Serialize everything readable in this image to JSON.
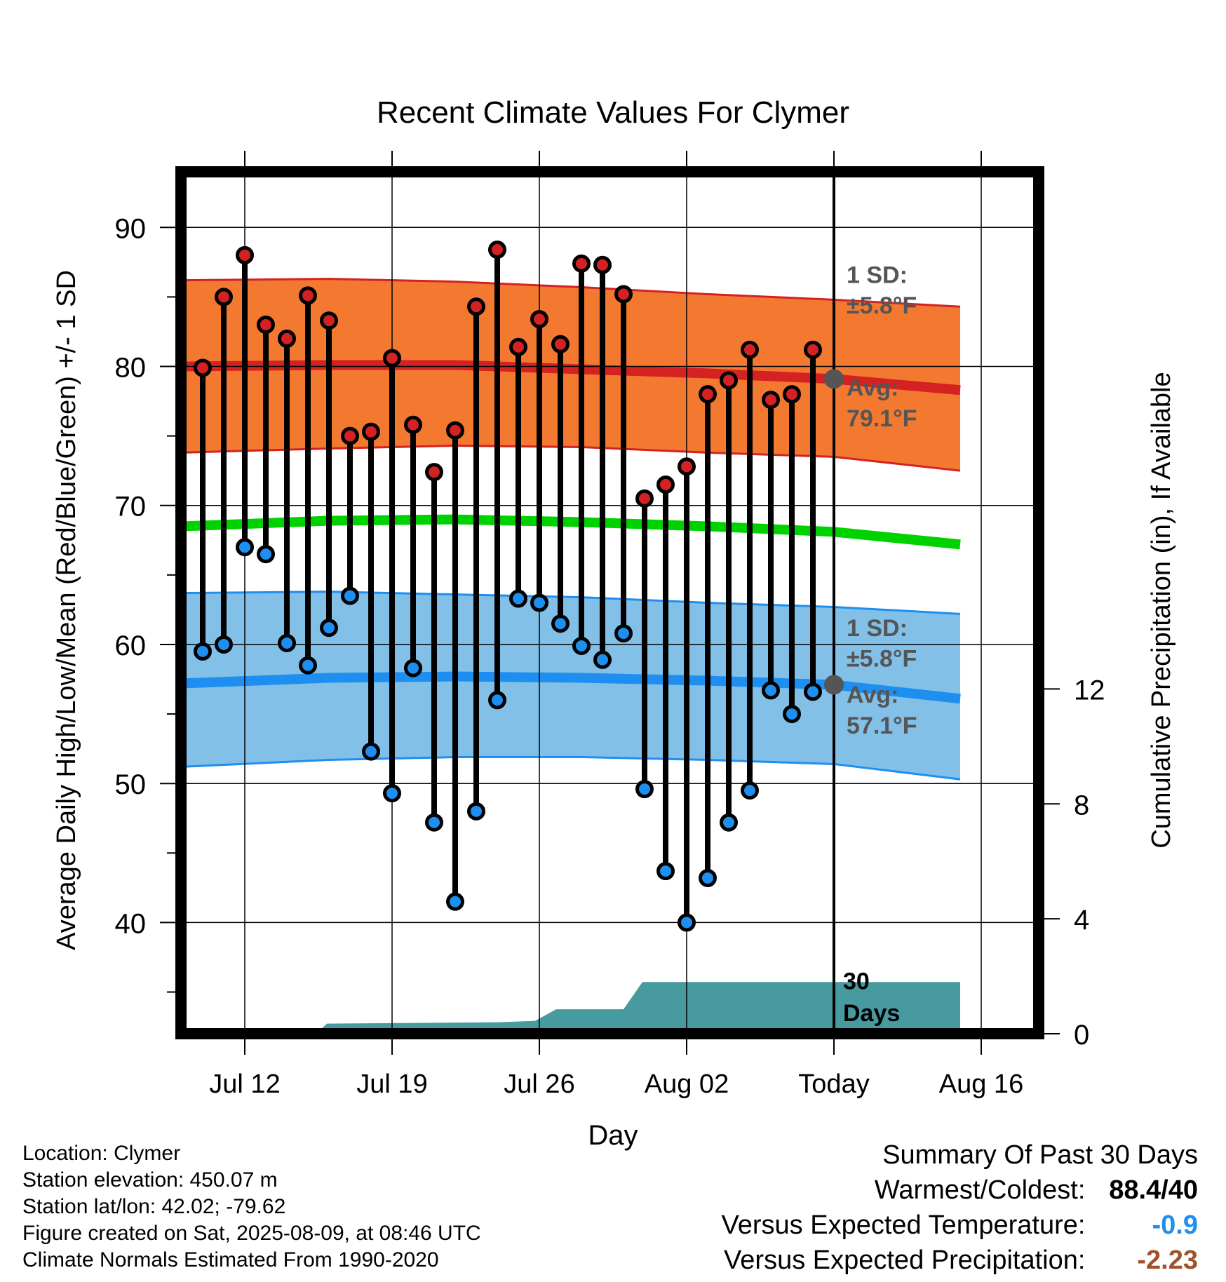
{
  "chart_data": {
    "type": "line",
    "title": "Recent Climate Values For Clymer",
    "xlabel": "Day",
    "ylabel": "Average Daily High/Low/Mean (Red/Blue/Green) +/- 1 SD",
    "y2label": "Cumulative Precipitation (in), If Available",
    "ylim": [
      32,
      94
    ],
    "y2lim": [
      0,
      30
    ],
    "yticks": [
      40,
      50,
      60,
      70,
      80,
      90
    ],
    "y2ticks": [
      0,
      4,
      8,
      12
    ],
    "grid": true,
    "x_tick_labels": [
      "Jul 12",
      "Jul 19",
      "Jul 26",
      "Aug 02",
      "Today",
      "Aug 16"
    ],
    "x_tick_days": [
      0,
      7,
      14,
      21,
      28,
      35
    ],
    "observed": {
      "day_offset_from_jul12": [
        -2,
        -1,
        0,
        1,
        2,
        3,
        4,
        5,
        6,
        7,
        8,
        9,
        10,
        11,
        12,
        13,
        14,
        15,
        16,
        17,
        18,
        19,
        20,
        21,
        22,
        23,
        24,
        25,
        26,
        27,
        28
      ],
      "high": [
        79.9,
        85.0,
        88.0,
        83.0,
        82.0,
        85.1,
        83.3,
        75.0,
        75.3,
        80.6,
        75.8,
        72.4,
        75.4,
        84.3,
        88.4,
        81.4,
        83.4,
        81.6,
        87.4,
        87.3,
        85.2,
        70.5,
        71.5,
        72.8,
        78.0,
        79.0,
        81.2,
        77.6,
        78.0,
        81.2,
        null
      ],
      "low": [
        59.5,
        60.0,
        67.0,
        66.5,
        60.1,
        58.5,
        61.2,
        63.5,
        52.3,
        49.3,
        58.3,
        47.2,
        41.5,
        48.0,
        56.0,
        63.3,
        63.0,
        61.5,
        59.9,
        58.9,
        60.8,
        49.6,
        43.7,
        40.0,
        43.2,
        47.2,
        49.5,
        56.7,
        55.0,
        56.6,
        null
      ]
    },
    "normals": {
      "day_offset_from_jul12": [
        -3,
        4,
        10,
        16,
        22,
        28,
        34
      ],
      "avg_high": [
        80.0,
        80.1,
        80.1,
        79.8,
        79.5,
        79.1,
        78.3
      ],
      "avg_high_plus_sd": [
        86.2,
        86.3,
        86.1,
        85.7,
        85.2,
        84.8,
        84.3
      ],
      "avg_high_minus_sd": [
        73.8,
        74.1,
        74.3,
        74.2,
        73.8,
        73.5,
        72.5
      ],
      "avg_mean": [
        68.5,
        68.9,
        69.0,
        68.8,
        68.5,
        68.1,
        67.2
      ],
      "avg_low": [
        57.2,
        57.6,
        57.7,
        57.6,
        57.4,
        57.1,
        56.1
      ],
      "avg_low_plus_sd": [
        63.7,
        63.8,
        63.6,
        63.4,
        63.0,
        62.7,
        62.2
      ],
      "avg_low_minus_sd": [
        51.2,
        51.7,
        51.9,
        51.9,
        51.7,
        51.4,
        50.3
      ]
    },
    "precipitation": {
      "day_offset_from_jul12": [
        -3,
        3.4,
        3.9,
        12.1,
        13.8,
        14.8,
        18.0,
        18.9,
        34.0
      ],
      "cumulative_in": [
        0,
        0,
        0.35,
        0.4,
        0.45,
        0.85,
        0.85,
        1.8,
        1.8
      ]
    },
    "annotations": {
      "high_sd_label": "1 SD:",
      "high_sd_value": "±5.8°F",
      "high_avg_label": "Avg:",
      "high_avg_value": "79.1°F",
      "low_sd_label": "1 SD:",
      "low_sd_value": "±5.8°F",
      "low_avg_label": "Avg:",
      "low_avg_value": "57.1°F",
      "days_label_1": "30",
      "days_label_2": "Days"
    },
    "today_marker": {
      "day_offset_from_jul12": 28,
      "avg_high": 79.1,
      "avg_low": 57.1
    },
    "colors": {
      "high_band": "#f47930",
      "high_line": "#d42222",
      "mean_line": "#00d200",
      "low_band": "#82c0e8",
      "low_line": "#1e8ff0",
      "precip": "#479a9f",
      "high_dot": "#d42222",
      "low_dot": "#1e8ff0",
      "today_dot": "#555555",
      "annotation_text": "#555555"
    }
  },
  "info": {
    "location": "Location: Clymer",
    "elevation": "Station elevation: 450.07 m",
    "latlon": "Station lat/lon: 42.02; -79.62",
    "created": "Figure created on Sat, 2025-08-09, at 08:46 UTC",
    "normals": "Climate Normals Estimated From 1990-2020"
  },
  "summary": {
    "title": "Summary Of Past 30 Days",
    "warmest_label": "Warmest/Coldest:",
    "warmest_value": "88.4/40",
    "temp_label": "Versus Expected Temperature:",
    "temp_value": "-0.9",
    "temp_color": "#1e8ff0",
    "precip_label": "Versus Expected Precipitation:",
    "precip_value": "-2.23",
    "precip_color": "#a0522d"
  }
}
